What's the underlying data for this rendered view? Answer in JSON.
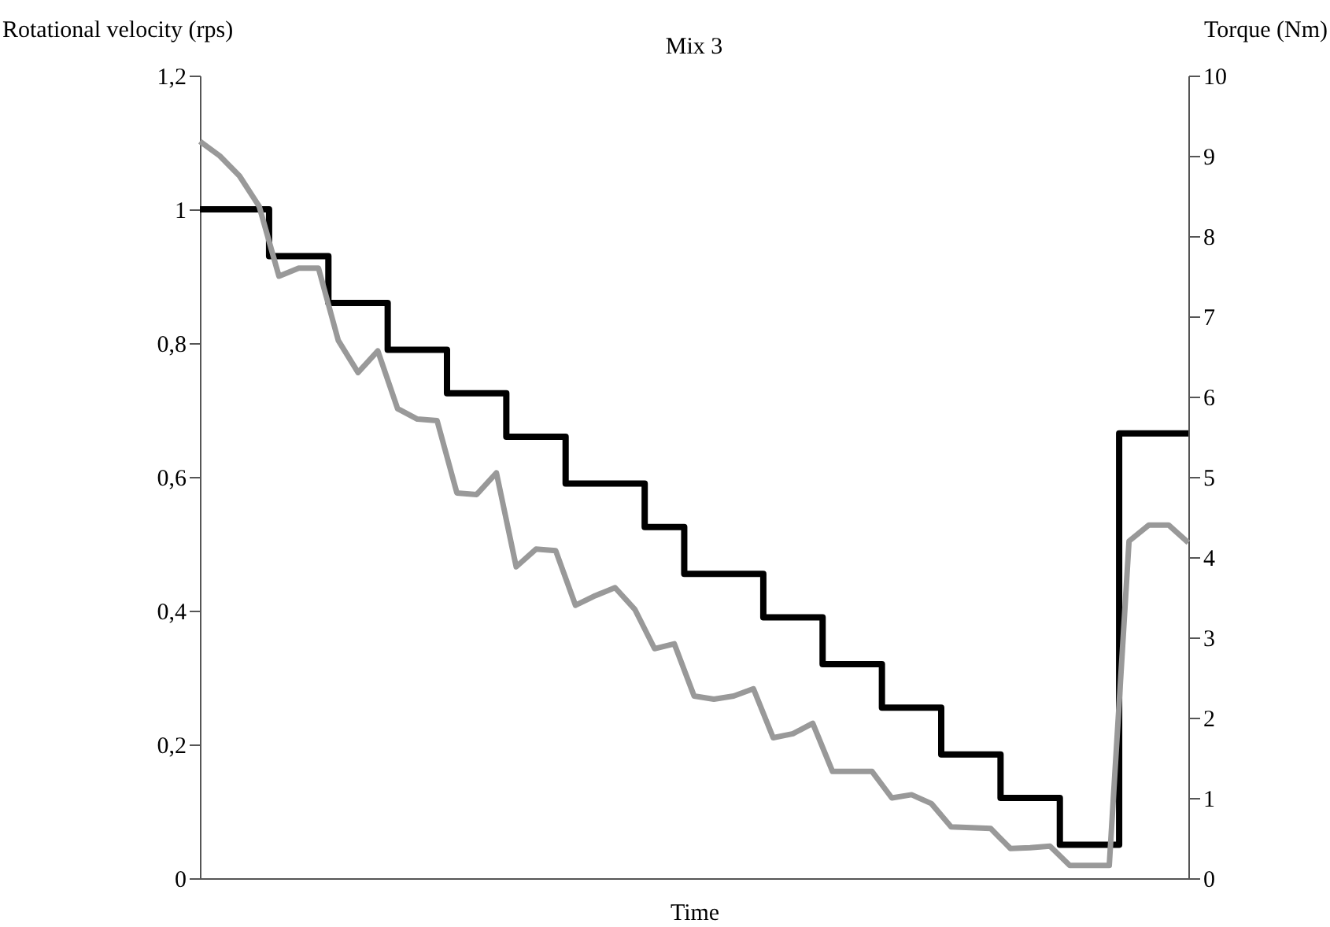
{
  "chart_data": {
    "type": "line",
    "title": "Mix 3",
    "xlabel": "Time",
    "ylabel": "Rotational velocity (rps)",
    "y2label": "Torque (Nm)",
    "categories": [
      null,
      null,
      null,
      null,
      null,
      null,
      null,
      null,
      null,
      null,
      null,
      null,
      null,
      null,
      null,
      null,
      null,
      null,
      null,
      null,
      null,
      null,
      null,
      null,
      null,
      null,
      null,
      null,
      null,
      null,
      null,
      null,
      null,
      null,
      null,
      null,
      null,
      null,
      null,
      null,
      null,
      null,
      null,
      null,
      null,
      null,
      null,
      null,
      null,
      null,
      null
    ],
    "ylim": [
      0,
      1.2
    ],
    "yticks": [
      {
        "value": 0,
        "label": "0"
      },
      {
        "value": 0.2,
        "label": "0,2"
      },
      {
        "value": 0.4,
        "label": "0,4"
      },
      {
        "value": 0.6,
        "label": "0,6"
      },
      {
        "value": 0.8,
        "label": "0,8"
      },
      {
        "value": 1,
        "label": "1"
      },
      {
        "value": 1.2,
        "label": "1,2"
      }
    ],
    "y2lim": [
      0,
      10
    ],
    "y2ticks": [
      0,
      1,
      2,
      3,
      4,
      5,
      6,
      7,
      8,
      9,
      10
    ],
    "grid": false,
    "line_style": "solid",
    "series": [
      {
        "type": "step",
        "color": "#000000",
        "values": [
          1,
          1,
          1,
          1,
          0.93,
          0.93,
          0.93,
          0.86,
          0.86,
          0.86,
          0.79,
          0.79,
          0.79,
          0.725,
          0.725,
          0.725,
          0.66,
          0.66,
          0.66,
          0.59,
          0.59,
          0.59,
          0.59,
          0.525,
          0.525,
          0.455,
          0.455,
          0.455,
          0.455,
          0.39,
          0.39,
          0.39,
          0.32,
          0.32,
          0.32,
          0.255,
          0.255,
          0.255,
          0.185,
          0.185,
          0.185,
          0.12,
          0.12,
          0.12,
          0.05,
          0.05,
          0.05,
          0.665,
          0.665,
          0.665,
          0.665
        ]
      },
      {
        "type": "line",
        "axis": "y2",
        "color": "#999999",
        "values": [
          9.18,
          9.0,
          8.75,
          8.37,
          7.5,
          7.6,
          7.6,
          6.7,
          6.3,
          6.57,
          5.85,
          5.72,
          5.7,
          4.8,
          4.78,
          5.05,
          3.88,
          4.1,
          4.08,
          3.4,
          3.52,
          3.62,
          3.35,
          2.86,
          2.92,
          2.27,
          2.23,
          2.27,
          2.36,
          1.75,
          1.8,
          1.93,
          1.33,
          1.33,
          1.33,
          1.0,
          1.04,
          0.93,
          0.64,
          0.63,
          0.62,
          0.37,
          0.38,
          0.4,
          0.16,
          0.16,
          0.16,
          4.2,
          4.4,
          4.4,
          4.18
        ]
      }
    ]
  }
}
